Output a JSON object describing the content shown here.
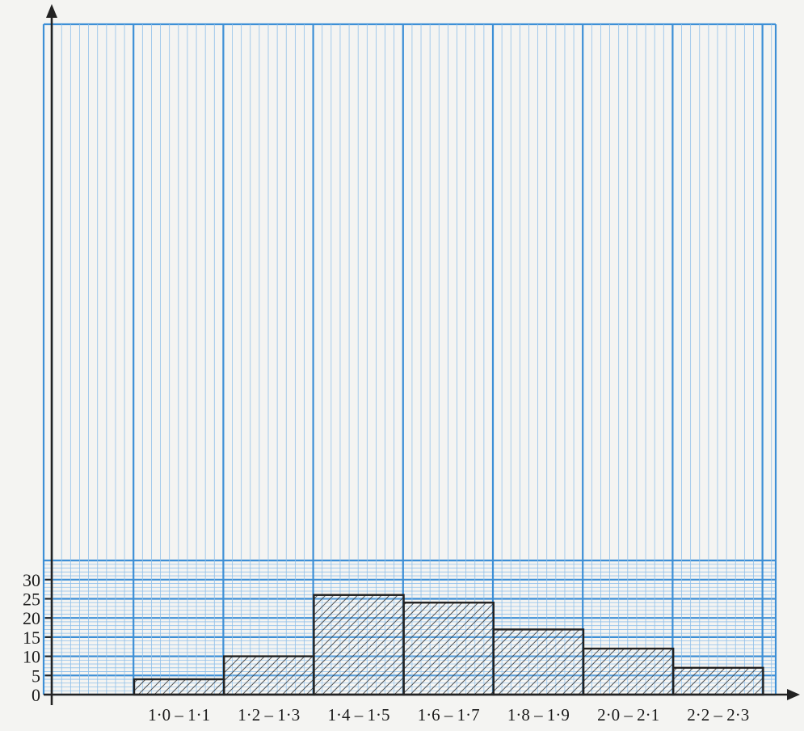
{
  "chart_data": {
    "type": "bar",
    "style": "histogram",
    "categories": [
      "1·0 – 1·1",
      "1·2 – 1·3",
      "1·4 – 1·5",
      "1·6 – 1·7",
      "1·8 – 1·9",
      "2·0 – 2·1",
      "2·2 – 2·3"
    ],
    "values": [
      4,
      10,
      26,
      24,
      17,
      12,
      7
    ],
    "yticks": [
      0,
      5,
      10,
      15,
      20,
      25,
      30
    ],
    "ylim": [
      0,
      35
    ],
    "xlabel": "",
    "ylabel": "",
    "title": "",
    "grid": true,
    "colors": {
      "grid_major": "#3d8fd6",
      "grid_minor": "#8fc0ea",
      "bar_stroke": "#222222",
      "hatch": "#2a2a2a",
      "axis": "#222222",
      "paper": "#f4f4f2"
    }
  }
}
